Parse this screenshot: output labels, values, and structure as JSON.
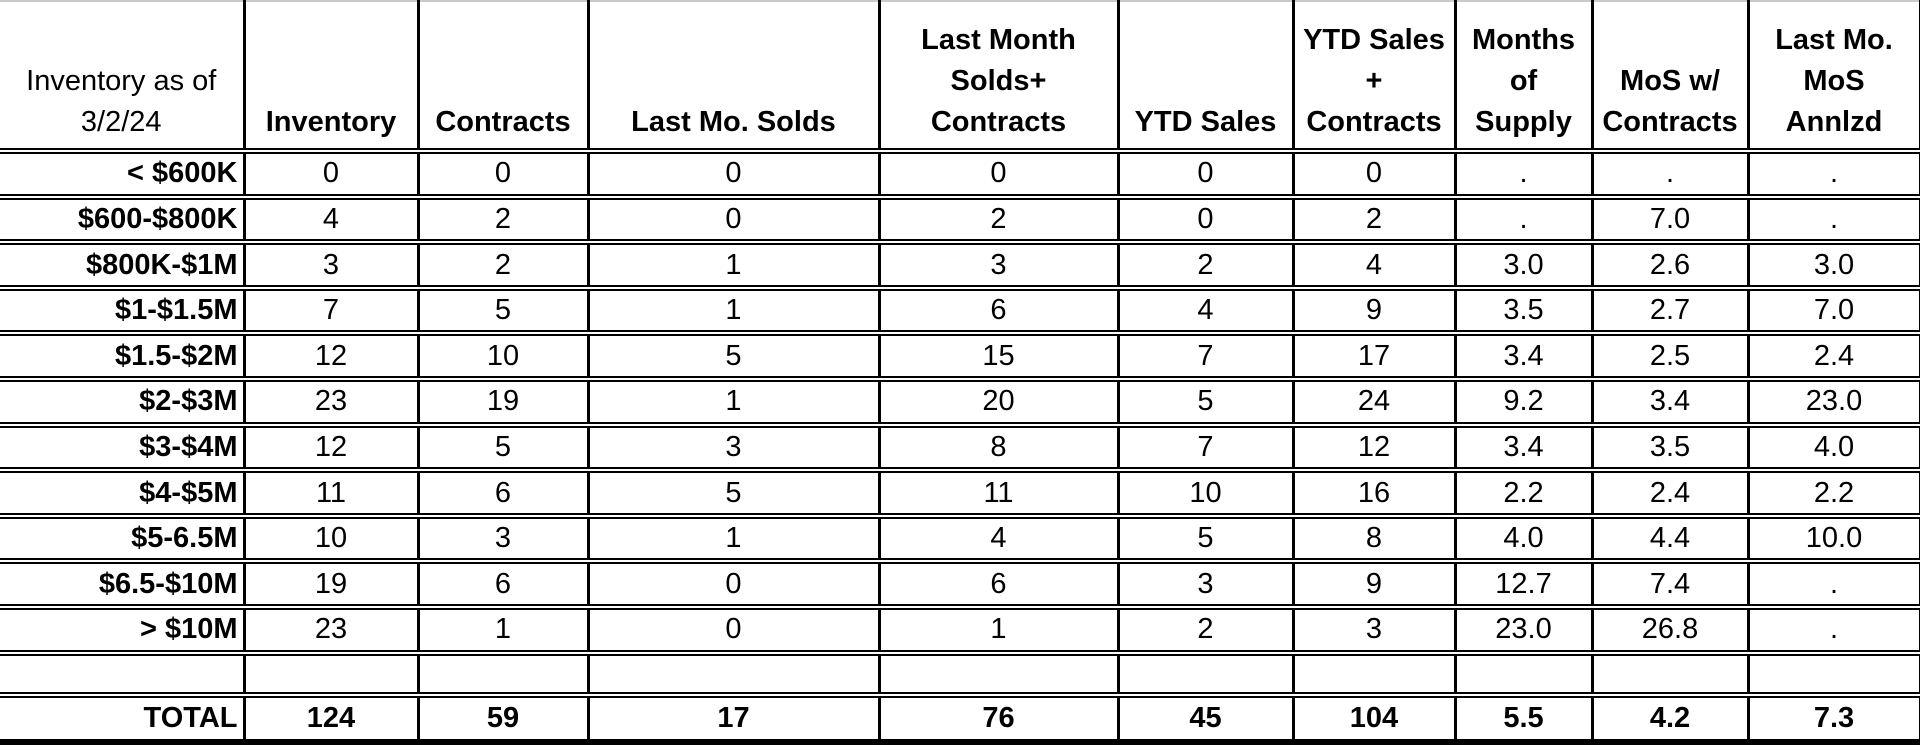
{
  "chart_data": {
    "type": "table",
    "title": "Inventory as of 3/2/24",
    "corner_header": "Inventory as of\n3/2/24",
    "columns": [
      "Inventory",
      "Contracts",
      "Last Mo. Solds",
      "Last Month\nSolds+\nContracts",
      "YTD Sales",
      "YTD Sales\n+\nContracts",
      "Months\nof\nSupply",
      "MoS w/\nContracts",
      "Last Mo.\nMoS\nAnnlzd"
    ],
    "rows": [
      {
        "label": "< $600K",
        "values": [
          "0",
          "0",
          "0",
          "0",
          "0",
          "0",
          ".",
          ".",
          "."
        ]
      },
      {
        "label": "$600-$800K",
        "values": [
          "4",
          "2",
          "0",
          "2",
          "0",
          "2",
          ".",
          "7.0",
          "."
        ]
      },
      {
        "label": "$800K-$1M",
        "values": [
          "3",
          "2",
          "1",
          "3",
          "2",
          "4",
          "3.0",
          "2.6",
          "3.0"
        ]
      },
      {
        "label": "$1-$1.5M",
        "values": [
          "7",
          "5",
          "1",
          "6",
          "4",
          "9",
          "3.5",
          "2.7",
          "7.0"
        ]
      },
      {
        "label": "$1.5-$2M",
        "values": [
          "12",
          "10",
          "5",
          "15",
          "7",
          "17",
          "3.4",
          "2.5",
          "2.4"
        ]
      },
      {
        "label": "$2-$3M",
        "values": [
          "23",
          "19",
          "1",
          "20",
          "5",
          "24",
          "9.2",
          "3.4",
          "23.0"
        ]
      },
      {
        "label": "$3-$4M",
        "values": [
          "12",
          "5",
          "3",
          "8",
          "7",
          "12",
          "3.4",
          "3.5",
          "4.0"
        ]
      },
      {
        "label": "$4-$5M",
        "values": [
          "11",
          "6",
          "5",
          "11",
          "10",
          "16",
          "2.2",
          "2.4",
          "2.2"
        ]
      },
      {
        "label": "$5-6.5M",
        "values": [
          "10",
          "3",
          "1",
          "4",
          "5",
          "8",
          "4.0",
          "4.4",
          "10.0"
        ]
      },
      {
        "label": "$6.5-$10M",
        "values": [
          "19",
          "6",
          "0",
          "6",
          "3",
          "9",
          "12.7",
          "7.4",
          "."
        ]
      },
      {
        "label": "> $10M",
        "values": [
          "23",
          "1",
          "0",
          "1",
          "2",
          "3",
          "23.0",
          "26.8",
          "."
        ]
      },
      {
        "label": "",
        "values": [
          "",
          "",
          "",
          "",
          "",
          "",
          "",
          "",
          ""
        ]
      },
      {
        "label": "TOTAL",
        "values": [
          "124",
          "59",
          "17",
          "76",
          "45",
          "104",
          "5.5",
          "4.2",
          "7.3"
        ],
        "is_total": true
      }
    ],
    "missing_value_symbol": ".",
    "layout_hints": {
      "grid": "on",
      "header_position": "top",
      "row_label_alignment": "right",
      "value_alignment": "center"
    },
    "colors": {
      "text": "#000000",
      "border": "#000000",
      "background": "#ffffff",
      "top_edge_line": "#c9c9c9"
    }
  }
}
